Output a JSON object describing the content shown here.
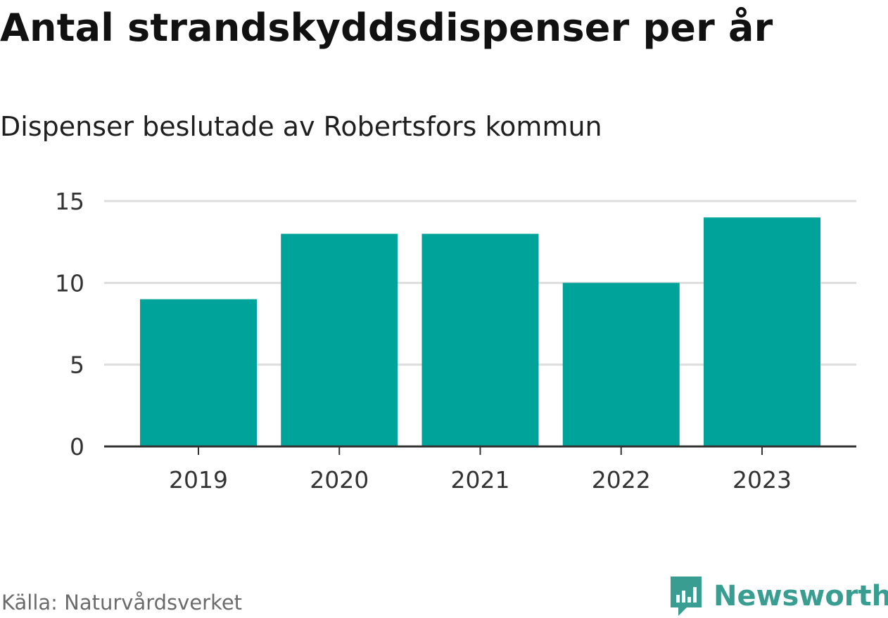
{
  "title": "Antal strandskyddsdispenser per år",
  "subtitle": "Dispenser beslutade av Robertsfors kommun",
  "source": "Källa: Naturvårdsverket",
  "brand": "Newsworthy",
  "colors": {
    "bar": "#00a39a",
    "brand": "#3a9d92",
    "grid": "#dddddd",
    "axis": "#333333"
  },
  "chart_data": {
    "type": "bar",
    "categories": [
      "2019",
      "2020",
      "2021",
      "2022",
      "2023"
    ],
    "values": [
      9,
      13,
      13,
      10,
      14
    ],
    "ylim": [
      0,
      15
    ],
    "yticks": [
      0,
      5,
      10,
      15
    ],
    "grid": true,
    "xlabel": "",
    "ylabel": ""
  }
}
